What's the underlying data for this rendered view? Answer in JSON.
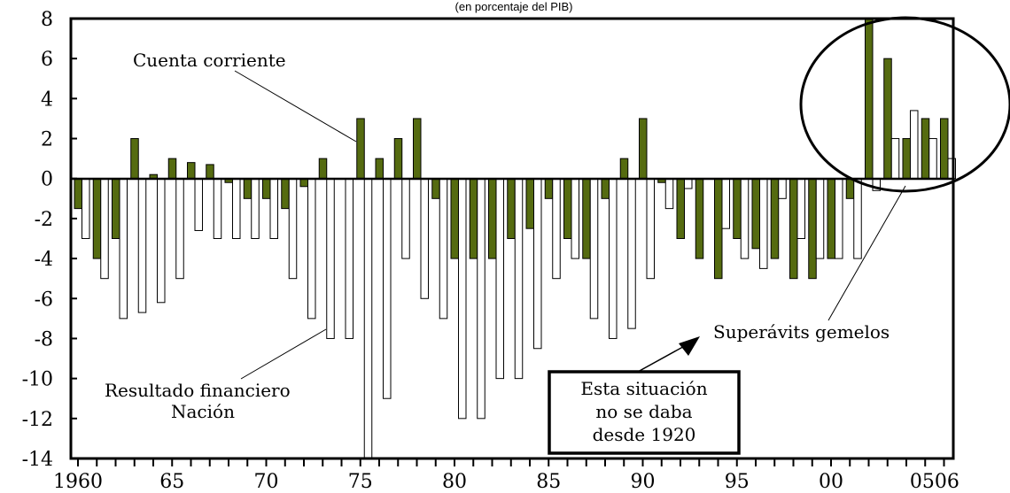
{
  "chart_data": {
    "type": "bar",
    "subtitle": "(en porcentaje del PIB)",
    "ylim": [
      -14,
      8
    ],
    "y_ticks": [
      "8",
      "6",
      "4",
      "2",
      "0",
      "-2",
      "-4",
      "-6",
      "-8",
      "-10",
      "-12",
      "-14"
    ],
    "x_tick_labels": [
      "1960",
      "65",
      "70",
      "75",
      "80",
      "85",
      "90",
      "95",
      "00",
      "0506"
    ],
    "x_years": [
      1960,
      1961,
      1962,
      1963,
      1964,
      1965,
      1966,
      1967,
      1968,
      1969,
      1970,
      1971,
      1972,
      1973,
      1974,
      1975,
      1976,
      1977,
      1978,
      1979,
      1980,
      1981,
      1982,
      1983,
      1984,
      1985,
      1986,
      1987,
      1988,
      1989,
      1990,
      1991,
      1992,
      1993,
      1994,
      1995,
      1996,
      1997,
      1998,
      1999,
      2000,
      2001,
      2002,
      2003,
      2004,
      2005,
      2006
    ],
    "series": [
      {
        "name": "Cuenta corriente",
        "color": "#556b10",
        "values": [
          -1.5,
          -4,
          -3,
          2,
          0.2,
          1,
          0.8,
          0.7,
          -0.2,
          -1,
          -1,
          -1.5,
          -0.4,
          1,
          0,
          3,
          1,
          2,
          3,
          -1,
          -4,
          -4,
          -4,
          -3,
          -2.5,
          -1,
          -3,
          -4,
          -1,
          1,
          3,
          -0.2,
          -3,
          -4,
          -5,
          -3,
          -3.5,
          -4,
          -5,
          -5,
          -4,
          -1,
          8,
          6,
          2,
          3,
          3
        ]
      },
      {
        "name": "Resultado financiero Nación",
        "color": "#ffffff",
        "values": [
          -3,
          -5,
          -7,
          -6.7,
          -6.2,
          -5,
          -2.6,
          -3,
          -3,
          -3,
          -3,
          -5,
          -7,
          -8,
          -8,
          -14,
          -11,
          -4,
          -6,
          -7,
          -12,
          -12,
          -10,
          -10,
          -8.5,
          -5,
          -4,
          -7,
          -8,
          -7.5,
          -5,
          -1.5,
          -0.5,
          0,
          -2.5,
          -4,
          -4.5,
          -1,
          -3,
          -4,
          -4,
          -4,
          -0.6,
          2,
          3.4,
          2,
          1
        ]
      }
    ],
    "annotations": {
      "cuenta_corriente": "Cuenta corriente",
      "resultado_line1": "Resultado financiero",
      "resultado_line2": "Nación",
      "superavits": "Superávits gemelos",
      "box_line1": "Esta situación",
      "box_line2": "no se daba",
      "box_line3": "desde 1920"
    }
  }
}
